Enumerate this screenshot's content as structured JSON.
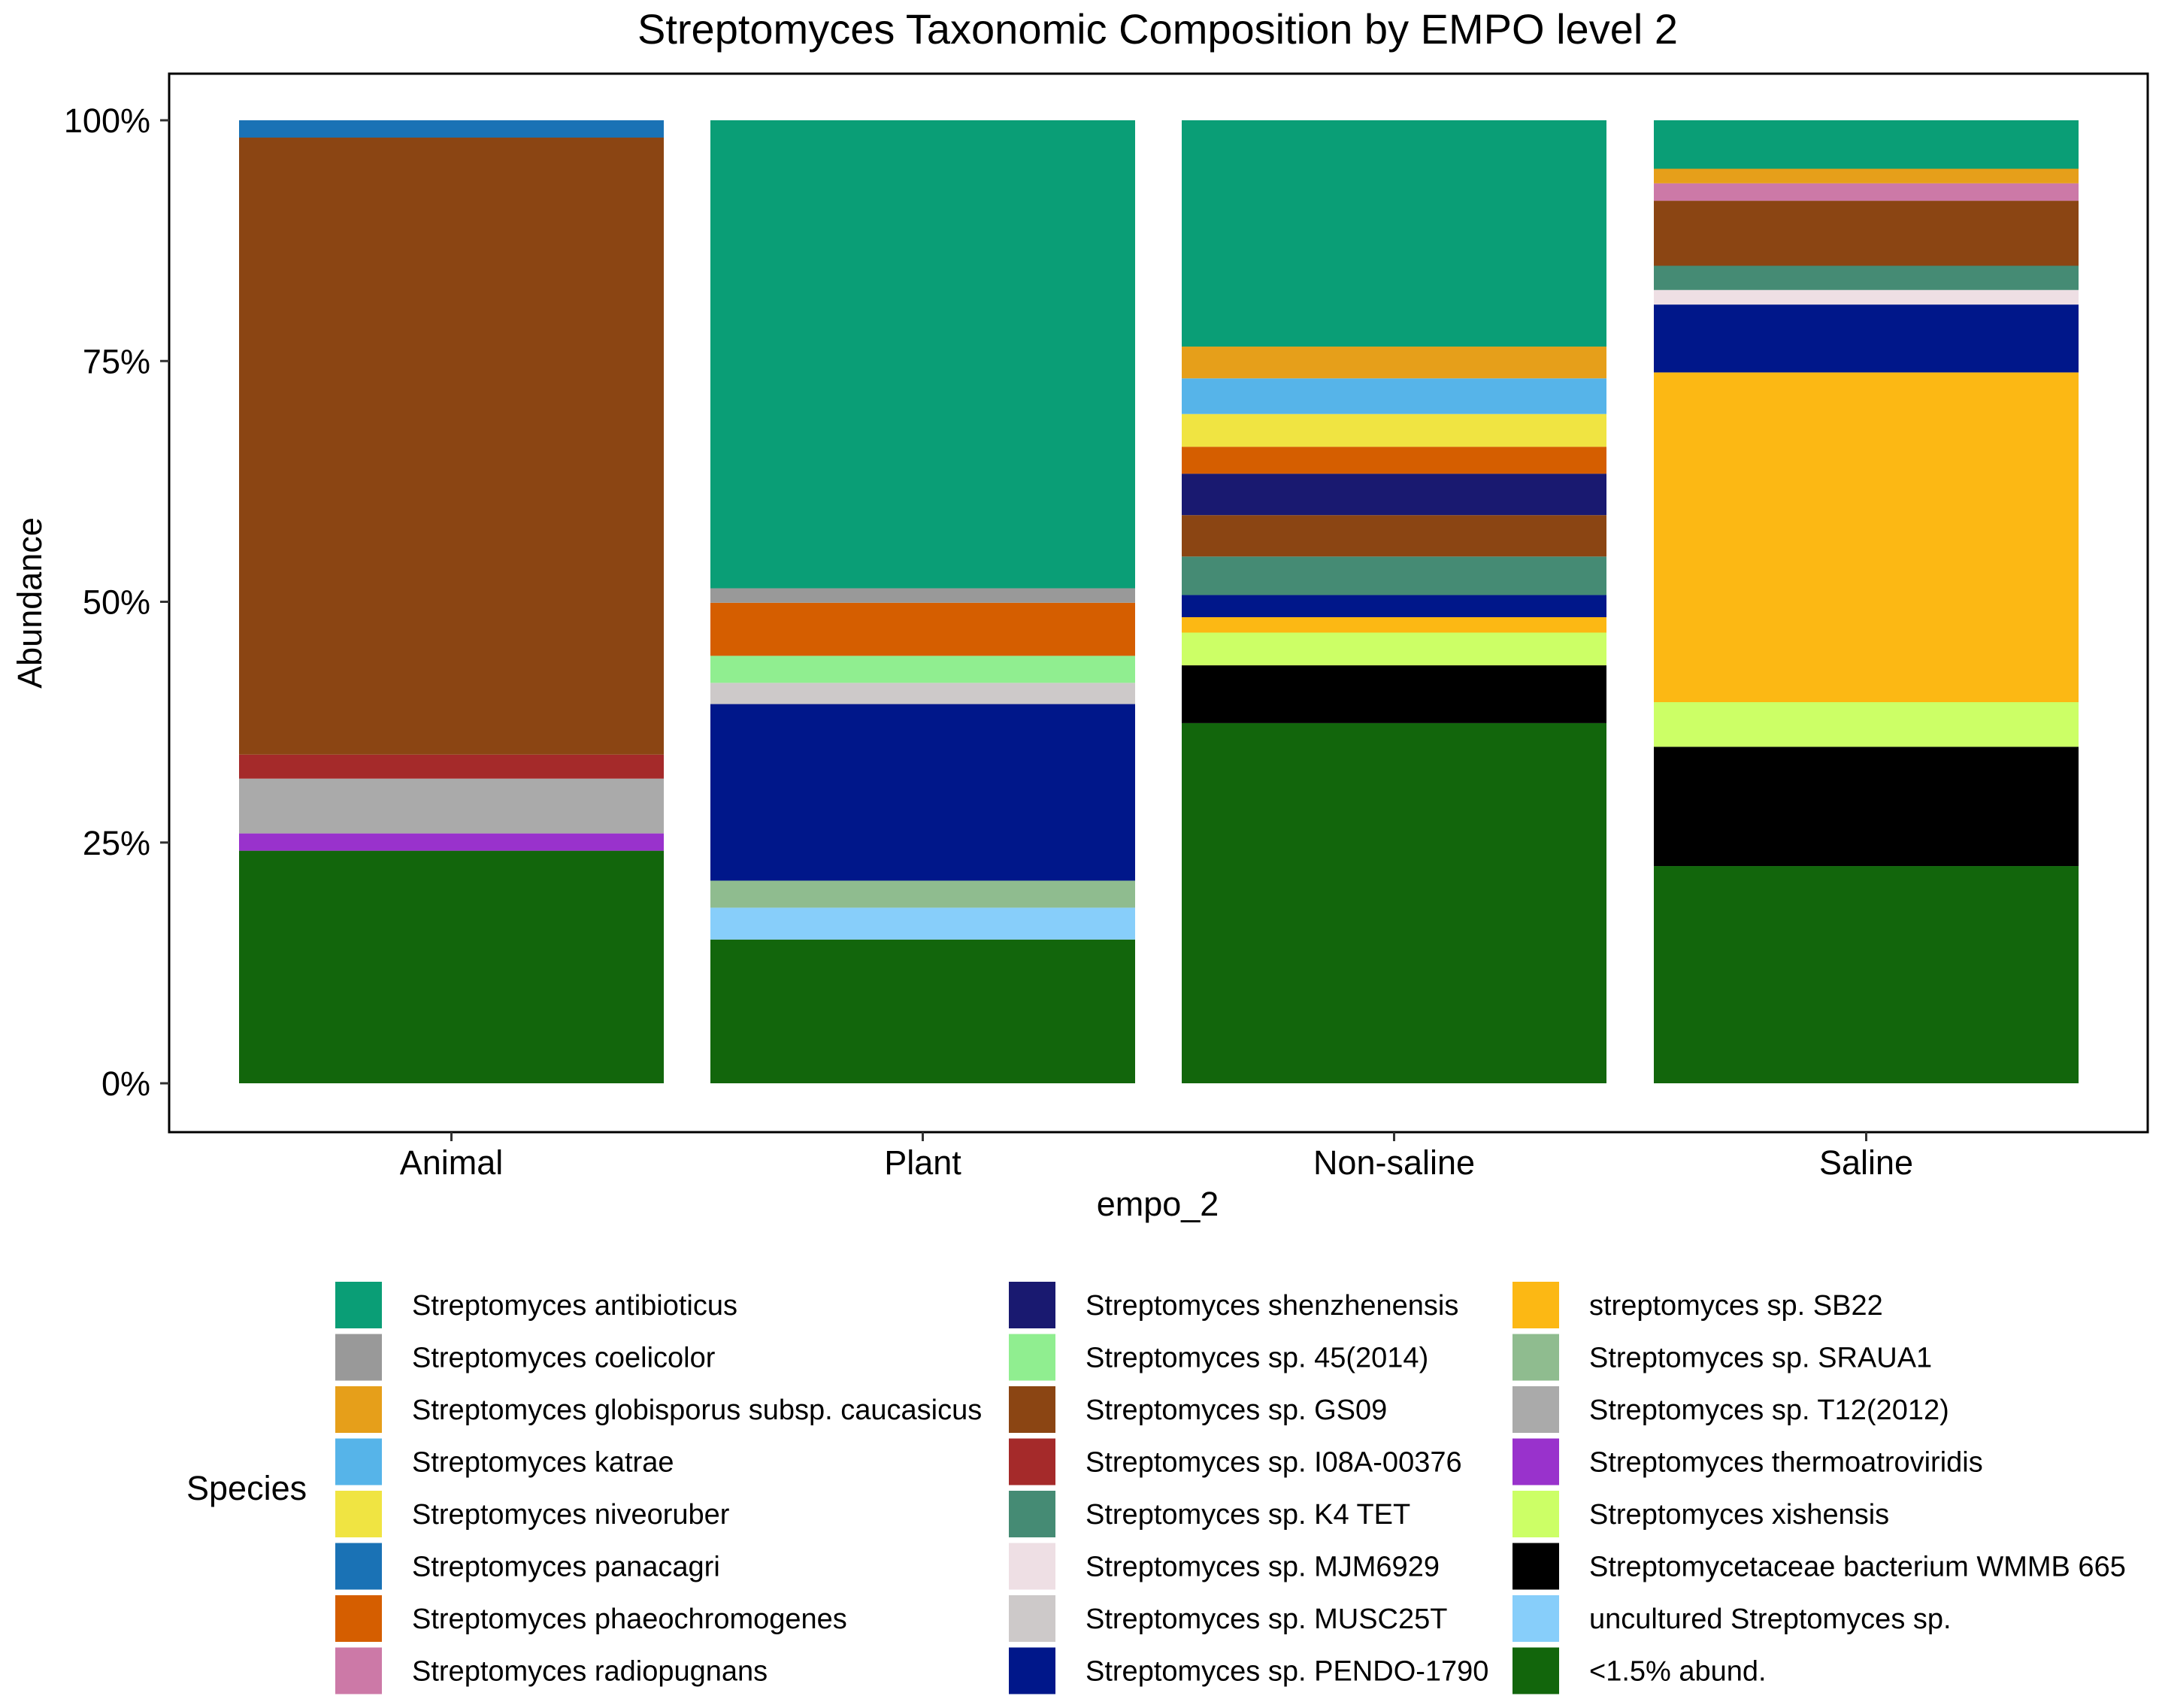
{
  "chart_data": {
    "type": "bar",
    "stacked": true,
    "normalized": true,
    "title": "Streptomyces Taxonomic Composition by EMPO level 2",
    "xlabel": "empo_2",
    "ylabel": "Abundance",
    "ylim": [
      0,
      100
    ],
    "yticks": [
      "0%",
      "25%",
      "50%",
      "75%",
      "100%"
    ],
    "ytick_values": [
      0,
      25,
      50,
      75,
      100
    ],
    "categories": [
      "Animal",
      "Plant",
      "Non-saline",
      "Saline"
    ],
    "legend_title": "Species",
    "legend_position": "bottom",
    "series": [
      {
        "name": "Streptomyces antibioticus",
        "color": "#0a9e76",
        "values": [
          0,
          48.5,
          23.5,
          5
        ]
      },
      {
        "name": "Streptomyces coelicolor",
        "color": "#999999",
        "values": [
          0,
          1.5,
          0,
          0
        ]
      },
      {
        "name": "Streptomyces globisporus subsp. caucasicus",
        "color": "#e69f1a",
        "values": [
          0,
          0,
          3.3,
          1.5
        ]
      },
      {
        "name": "Streptomyces katrae",
        "color": "#56b4e9",
        "values": [
          0,
          0,
          3.7,
          0
        ]
      },
      {
        "name": "Streptomyces niveoruber",
        "color": "#f0e442",
        "values": [
          0,
          0,
          3.4,
          0
        ]
      },
      {
        "name": "Streptomyces panacagri",
        "color": "#1a72b5",
        "values": [
          1.8,
          0,
          0,
          0
        ]
      },
      {
        "name": "Streptomyces phaeochromogenes",
        "color": "#d55e00",
        "values": [
          0,
          5.5,
          2.8,
          0
        ]
      },
      {
        "name": "Streptomyces radiopugnans",
        "color": "#cc79a7",
        "values": [
          0,
          0,
          0,
          1.8
        ]
      },
      {
        "name": "Streptomyces shenzhenensis",
        "color": "#191970",
        "values": [
          0,
          0,
          4.3,
          0
        ]
      },
      {
        "name": "Streptomyces sp. 45(2014)",
        "color": "#90ee90",
        "values": [
          0,
          2.8,
          0,
          0
        ]
      },
      {
        "name": "Streptomyces sp. GS09",
        "color": "#8b4513",
        "values": [
          64.2,
          0,
          4.3,
          6.7
        ]
      },
      {
        "name": "Streptomyces sp. I08A-00376",
        "color": "#a52a2a",
        "values": [
          2.5,
          0,
          0,
          0
        ]
      },
      {
        "name": "Streptomyces sp. K4 TET",
        "color": "#458b74",
        "values": [
          0,
          0,
          4.0,
          2.5
        ]
      },
      {
        "name": "Streptomyces sp. MJM6929",
        "color": "#eedfe4",
        "values": [
          0,
          0,
          0,
          1.5
        ]
      },
      {
        "name": "Streptomyces sp. MUSC25T",
        "color": "#cdc9c9",
        "values": [
          0,
          2.2,
          0,
          0
        ]
      },
      {
        "name": "Streptomyces sp. PENDO-1790",
        "color": "#00178a",
        "values": [
          0,
          18.3,
          2.3,
          7.0
        ]
      },
      {
        "name": "streptomyces sp. SB22",
        "color": "#fcb814",
        "values": [
          0,
          0,
          1.6,
          34.0
        ]
      },
      {
        "name": "Streptomyces sp. SRAUA1",
        "color": "#8fbc8f",
        "values": [
          0,
          2.8,
          0,
          0
        ]
      },
      {
        "name": "Streptomyces sp. T12(2012)",
        "color": "#aaaaaa",
        "values": [
          5.7,
          0,
          0,
          0
        ]
      },
      {
        "name": "Streptomyces thermoatroviridis",
        "color": "#9932cc",
        "values": [
          1.8,
          0,
          0,
          0
        ]
      },
      {
        "name": "Streptomyces xishensis",
        "color": "#ccff66",
        "values": [
          0,
          0,
          3.4,
          4.6
        ]
      },
      {
        "name": "Streptomycetaceae bacterium WMMB 665",
        "color": "#000000",
        "values": [
          0,
          0,
          6.0,
          12.3
        ]
      },
      {
        "name": "uncultured Streptomyces sp.",
        "color": "#87cefa",
        "values": [
          0,
          3.3,
          0,
          0
        ]
      },
      {
        "name": "<1.5% abund.",
        "color": "#12660c",
        "values": [
          24.2,
          14.9,
          37.4,
          22.4
        ]
      }
    ],
    "stack_order_top_to_bottom": [
      "Streptomyces antibioticus",
      "Streptomyces coelicolor",
      "Streptomyces globisporus subsp. caucasicus",
      "Streptomyces katrae",
      "Streptomyces niveoruber",
      "Streptomyces panacagri",
      "Streptomyces phaeochromogenes",
      "Streptomyces radiopugnans",
      "Streptomyces shenzhenensis",
      "Streptomyces sp. 45(2014)",
      "Streptomyces sp. MUSC25T",
      "Streptomyces sp. GS09",
      "Streptomyces sp. K4 TET",
      "Streptomyces sp. MJM6929",
      "Streptomyces sp. I08A-00376",
      "Streptomyces sp. PENDO-1790",
      "streptomyces sp. SB22",
      "Streptomyces sp. T12(2012)",
      "Streptomyces thermoatroviridis",
      "Streptomyces sp. SRAUA1",
      "uncultured Streptomyces sp.",
      "Streptomyces xishensis",
      "Streptomycetaceae bacterium WMMB 665",
      "<1.5% abund."
    ]
  }
}
